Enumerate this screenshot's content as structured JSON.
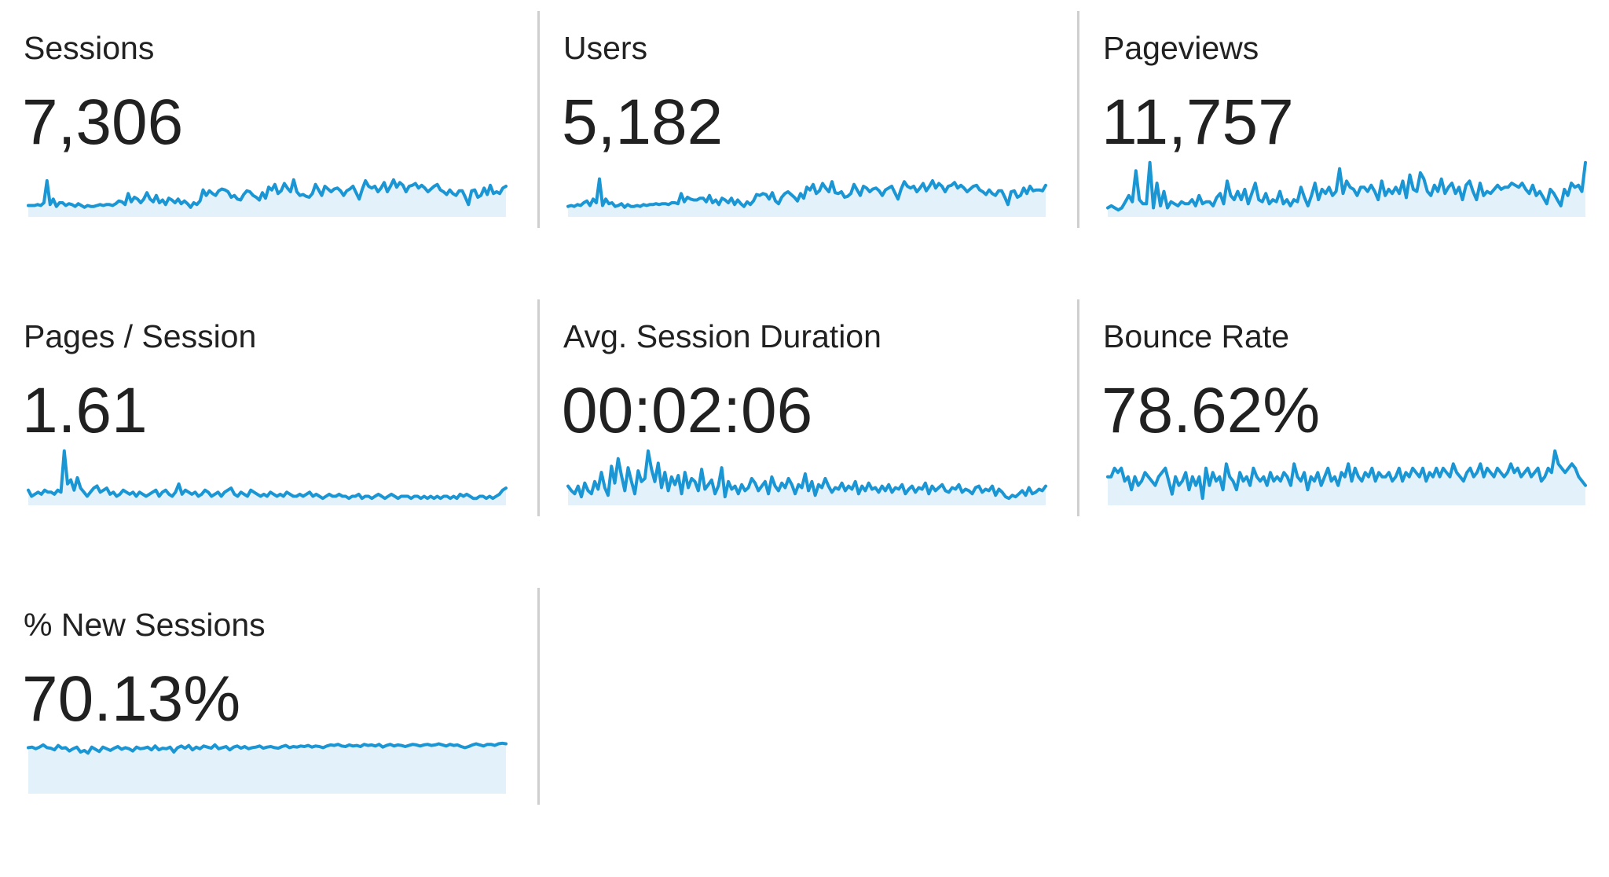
{
  "colors": {
    "line": "#1a96d4",
    "fill": "#e3f1fb",
    "separator": "#cfcfcf",
    "text": "#212121"
  },
  "chart_data": [
    {
      "type": "area",
      "label": "Sessions",
      "value": "7,306",
      "values": [
        9,
        9,
        9,
        10,
        9,
        12,
        36,
        10,
        16,
        8,
        12,
        12,
        9,
        11,
        10,
        8,
        11,
        9,
        7,
        9,
        8,
        8,
        9,
        10,
        9,
        10,
        10,
        9,
        11,
        14,
        13,
        10,
        22,
        13,
        18,
        16,
        12,
        16,
        23,
        16,
        13,
        20,
        12,
        15,
        10,
        17,
        15,
        12,
        16,
        11,
        14,
        11,
        7,
        12,
        10,
        14,
        26,
        20,
        25,
        22,
        20,
        25,
        27,
        26,
        24,
        18,
        20,
        16,
        15,
        21,
        25,
        24,
        20,
        18,
        15,
        23,
        17,
        29,
        26,
        32,
        22,
        25,
        33,
        28,
        24,
        37,
        24,
        20,
        21,
        19,
        18,
        22,
        32,
        26,
        20,
        30,
        27,
        24,
        27,
        28,
        25,
        20,
        25,
        27,
        30,
        23,
        16,
        27,
        36,
        30,
        28,
        30,
        24,
        28,
        34,
        24,
        30,
        37,
        29,
        34,
        31,
        24,
        30,
        31,
        33,
        28,
        31,
        28,
        24,
        27,
        30,
        32,
        26,
        24,
        21,
        26,
        22,
        20,
        25,
        25,
        18,
        10,
        25,
        26,
        18,
        20,
        28,
        21,
        31,
        22,
        24,
        22,
        28,
        30
      ],
      "ylim": [
        0,
        60
      ]
    },
    {
      "type": "area",
      "label": "Users",
      "value": "5,182",
      "values": [
        8,
        9,
        8,
        10,
        9,
        12,
        14,
        9,
        16,
        12,
        38,
        9,
        16,
        11,
        12,
        8,
        9,
        11,
        7,
        10,
        8,
        8,
        9,
        8,
        10,
        9,
        10,
        10,
        11,
        10,
        11,
        11,
        10,
        12,
        12,
        11,
        22,
        13,
        18,
        16,
        15,
        15,
        17,
        17,
        13,
        20,
        12,
        15,
        10,
        17,
        15,
        12,
        17,
        10,
        15,
        11,
        8,
        13,
        10,
        14,
        21,
        20,
        22,
        21,
        16,
        23,
        14,
        11,
        18,
        22,
        24,
        21,
        18,
        14,
        22,
        17,
        29,
        26,
        32,
        22,
        25,
        33,
        28,
        24,
        35,
        23,
        22,
        24,
        18,
        19,
        22,
        32,
        26,
        20,
        30,
        28,
        24,
        27,
        28,
        25,
        20,
        26,
        28,
        30,
        23,
        16,
        27,
        35,
        30,
        28,
        30,
        24,
        28,
        33,
        25,
        30,
        36,
        28,
        33,
        30,
        24,
        30,
        31,
        34,
        28,
        31,
        28,
        24,
        27,
        30,
        31,
        26,
        24,
        21,
        26,
        22,
        20,
        25,
        25,
        18,
        10,
        24,
        25,
        18,
        20,
        28,
        22,
        30,
        25,
        26,
        26,
        25,
        31
      ],
      "ylim": [
        0,
        60
      ]
    },
    {
      "type": "area",
      "label": "Pageviews",
      "value": "11,757",
      "values": [
        10,
        11,
        10,
        9,
        10,
        13,
        16,
        13,
        28,
        14,
        12,
        12,
        32,
        10,
        22,
        11,
        18,
        10,
        13,
        12,
        11,
        13,
        12,
        12,
        14,
        11,
        16,
        12,
        13,
        13,
        11,
        15,
        17,
        12,
        23,
        16,
        14,
        18,
        14,
        19,
        12,
        17,
        22,
        14,
        13,
        17,
        12,
        14,
        13,
        18,
        12,
        14,
        11,
        14,
        13,
        20,
        15,
        11,
        16,
        22,
        14,
        19,
        17,
        20,
        16,
        18,
        29,
        17,
        23,
        20,
        19,
        16,
        20,
        20,
        18,
        21,
        18,
        14,
        23,
        16,
        19,
        17,
        20,
        17,
        23,
        15,
        26,
        19,
        18,
        27,
        24,
        18,
        16,
        21,
        18,
        24,
        17,
        20,
        22,
        17,
        20,
        14,
        21,
        23,
        18,
        14,
        22,
        16,
        18,
        17,
        19,
        21,
        19,
        20,
        20,
        22,
        21,
        20,
        22,
        19,
        17,
        21,
        16,
        18,
        15,
        12,
        19,
        17,
        14,
        11,
        19,
        16,
        22,
        20,
        21,
        18,
        32
      ]
    },
    {
      "type": "area",
      "label": "Pages / Session",
      "value": "1.61",
      "values": [
        15,
        12,
        13,
        14,
        13,
        15,
        14,
        14,
        13,
        15,
        14,
        34,
        18,
        20,
        15,
        21,
        16,
        14,
        12,
        14,
        16,
        17,
        14,
        15,
        16,
        13,
        14,
        12,
        13,
        15,
        14,
        13,
        14,
        12,
        14,
        13,
        12,
        13,
        14,
        15,
        12,
        14,
        15,
        13,
        12,
        14,
        18,
        13,
        15,
        14,
        13,
        14,
        12,
        13,
        15,
        14,
        12,
        13,
        14,
        12,
        14,
        15,
        16,
        13,
        12,
        14,
        13,
        12,
        15,
        14,
        13,
        12,
        13,
        12,
        14,
        13,
        12,
        13,
        12,
        14,
        13,
        12,
        12,
        13,
        12,
        13,
        14,
        12,
        13,
        12,
        11,
        12,
        13,
        12,
        12,
        13,
        12,
        12,
        11,
        12,
        12,
        13,
        11,
        12,
        12,
        11,
        12,
        13,
        12,
        11,
        12,
        13,
        12,
        11,
        12,
        12,
        12,
        11,
        12,
        12,
        11,
        12,
        11,
        12,
        11,
        12,
        11,
        12,
        12,
        11,
        12,
        11,
        13,
        12,
        13,
        12,
        11,
        11,
        12,
        12,
        11,
        12,
        11,
        12,
        13,
        15,
        16
      ]
    },
    {
      "type": "area",
      "label": "Avg. Session Duration",
      "value": "00:02:06",
      "values": [
        15,
        12,
        10,
        15,
        8,
        17,
        12,
        10,
        18,
        13,
        24,
        14,
        9,
        28,
        17,
        33,
        22,
        12,
        27,
        18,
        10,
        25,
        18,
        20,
        38,
        26,
        18,
        30,
        14,
        24,
        12,
        21,
        16,
        22,
        10,
        24,
        14,
        20,
        18,
        12,
        26,
        13,
        16,
        19,
        10,
        15,
        27,
        8,
        18,
        13,
        15,
        10,
        16,
        12,
        14,
        20,
        17,
        12,
        15,
        18,
        10,
        21,
        15,
        12,
        17,
        14,
        20,
        16,
        10,
        16,
        14,
        23,
        12,
        18,
        9,
        16,
        14,
        20,
        15,
        11,
        14,
        13,
        17,
        12,
        15,
        13,
        18,
        10,
        15,
        12,
        17,
        13,
        14,
        11,
        15,
        12,
        16,
        11,
        14,
        13,
        16,
        10,
        13,
        15,
        11,
        14,
        13,
        17,
        10,
        15,
        12,
        14,
        16,
        12,
        11,
        14,
        13,
        16,
        11,
        13,
        12,
        10,
        14,
        15,
        11,
        13,
        12,
        15,
        9,
        13,
        11,
        8,
        7,
        9,
        8,
        10,
        12,
        9,
        14,
        10,
        11,
        13,
        12,
        15
      ]
    },
    {
      "type": "area",
      "label": "Bounce Rate",
      "value": "78.62%",
      "values": [
        80,
        80,
        82,
        81,
        82,
        79,
        80,
        77,
        80,
        78,
        79,
        81,
        80,
        79,
        78,
        80,
        81,
        82,
        79,
        76,
        80,
        78,
        79,
        81,
        77,
        80,
        78,
        80,
        75,
        82,
        78,
        81,
        79,
        80,
        77,
        83,
        80,
        79,
        77,
        81,
        79,
        80,
        78,
        82,
        80,
        79,
        80,
        78,
        81,
        79,
        80,
        79,
        81,
        80,
        78,
        83,
        80,
        79,
        81,
        77,
        80,
        79,
        81,
        78,
        80,
        82,
        79,
        80,
        78,
        81,
        80,
        83,
        79,
        82,
        80,
        79,
        81,
        80,
        82,
        79,
        81,
        80,
        80,
        81,
        79,
        80,
        82,
        79,
        81,
        80,
        82,
        81,
        80,
        82,
        79,
        81,
        80,
        82,
        80,
        82,
        81,
        80,
        83,
        81,
        80,
        79,
        81,
        82,
        80,
        81,
        83,
        80,
        82,
        81,
        80,
        82,
        81,
        80,
        81,
        83,
        81,
        82,
        80,
        81,
        82,
        80,
        81,
        82,
        79,
        80,
        82,
        81,
        86,
        83,
        82,
        81,
        82,
        83,
        82,
        80,
        79,
        78
      ]
    },
    {
      "type": "area",
      "label": "% New Sessions",
      "value": "70.13%",
      "values": [
        78,
        79,
        76,
        79,
        83,
        78,
        77,
        74,
        82,
        77,
        78,
        72,
        76,
        79,
        70,
        73,
        68,
        79,
        75,
        71,
        79,
        76,
        73,
        77,
        80,
        75,
        78,
        76,
        72,
        79,
        76,
        77,
        79,
        74,
        81,
        74,
        77,
        76,
        79,
        70,
        78,
        81,
        77,
        82,
        74,
        79,
        76,
        81,
        79,
        77,
        83,
        76,
        78,
        80,
        74,
        79,
        81,
        77,
        80,
        76,
        78,
        79,
        81,
        77,
        79,
        80,
        78,
        77,
        80,
        82,
        78,
        80,
        79,
        81,
        80,
        82,
        79,
        81,
        80,
        78,
        81,
        83,
        82,
        84,
        81,
        80,
        83,
        81,
        82,
        80,
        84,
        82,
        83,
        81,
        84,
        79,
        82,
        84,
        81,
        83,
        82,
        80,
        82,
        84,
        83,
        81,
        83,
        84,
        82,
        83,
        85,
        83,
        81,
        84,
        82,
        83,
        80,
        78,
        80,
        83,
        85,
        83,
        81,
        84,
        84,
        82,
        85,
        86,
        85
      ],
      "ylim": [
        0,
        100
      ]
    }
  ]
}
